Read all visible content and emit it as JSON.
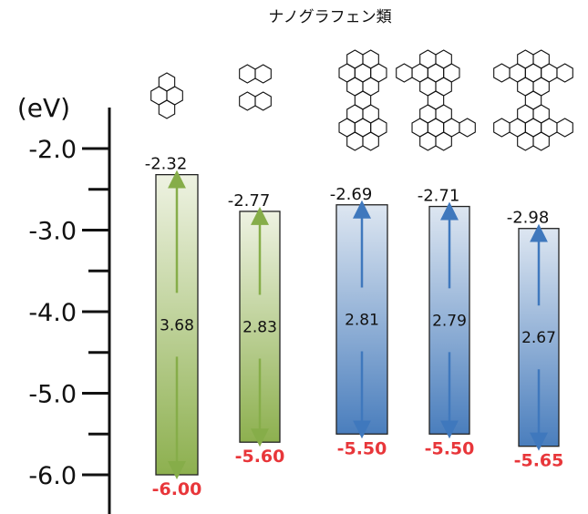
{
  "chart_data": {
    "type": "bar",
    "title": "ナノグラフェン類",
    "unit_label": "(eV)",
    "ylim": [
      -6.5,
      -1.3
    ],
    "yticks": [
      -2.0,
      -3.0,
      -4.0,
      -5.0,
      -6.0
    ],
    "ytick_labels": [
      "-2.0",
      "-3.0",
      "-4.0",
      "-5.0",
      "-6.0"
    ],
    "minor_ticks": [
      -2.5,
      -3.5,
      -4.5,
      -5.5
    ],
    "molecules": [
      {
        "structure": "pyrene-icon",
        "lumo": -2.32,
        "homo": -6.0,
        "gap": 3.68,
        "lumo_label": "-2.32",
        "homo_label": "-6.00",
        "gap_label": "3.68",
        "color": "green"
      },
      {
        "structure": "perylene-icon",
        "lumo": -2.77,
        "homo": -5.6,
        "gap": 2.83,
        "lumo_label": "-2.77",
        "homo_label": "-5.60",
        "gap_label": "2.83",
        "color": "green"
      },
      {
        "structure": "nanographene-a-icon",
        "lumo": -2.69,
        "homo": -5.5,
        "gap": 2.81,
        "lumo_label": "-2.69",
        "homo_label": "-5.50",
        "gap_label": "2.81",
        "color": "blue"
      },
      {
        "structure": "nanographene-b-icon",
        "lumo": -2.71,
        "homo": -5.5,
        "gap": 2.79,
        "lumo_label": "-2.71",
        "homo_label": "-5.50",
        "gap_label": "2.79",
        "color": "blue"
      },
      {
        "structure": "nanographene-c-icon",
        "lumo": -2.98,
        "homo": -5.65,
        "gap": 2.67,
        "lumo_label": "-2.98",
        "homo_label": "-5.65",
        "gap_label": "2.67",
        "color": "blue"
      }
    ]
  },
  "colors": {
    "green_top": "#eef2e2",
    "green_bottom": "#8db04f",
    "green_arrow": "#86ad49",
    "blue_top": "#dde6f1",
    "blue_bottom": "#4a7ebd",
    "blue_arrow": "#3f78bd",
    "homo_text": "#e8363a",
    "axis": "#111111"
  }
}
